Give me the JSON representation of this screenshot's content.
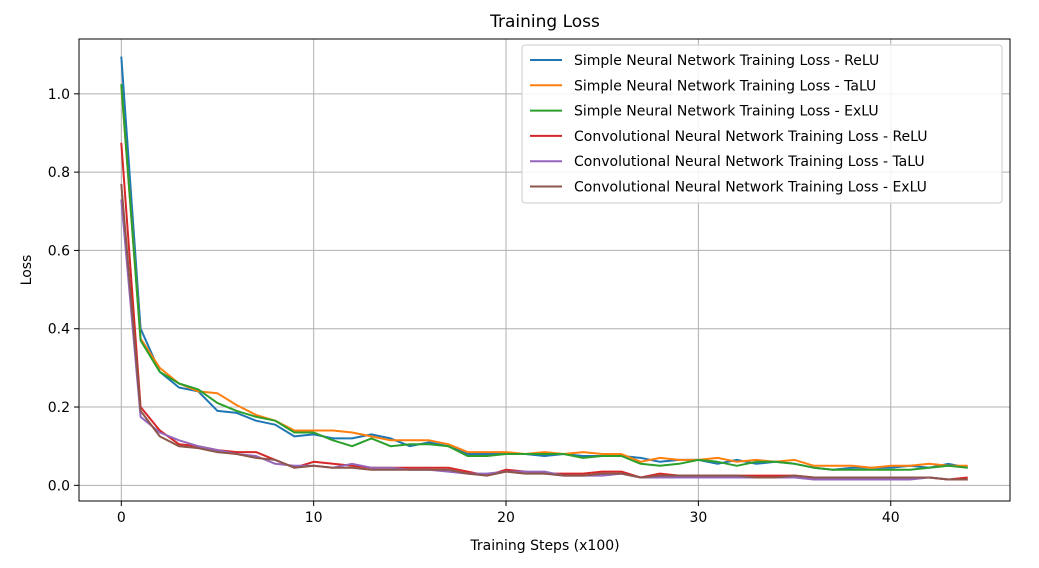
{
  "chart_data": {
    "type": "line",
    "title": "Training Loss",
    "xlabel": "Training Steps (x100)",
    "ylabel": "Loss",
    "xlim": [
      -2.2,
      46.2
    ],
    "ylim": [
      -0.04,
      1.14
    ],
    "xticks": [
      0,
      10,
      20,
      30,
      40
    ],
    "yticks": [
      0.0,
      0.2,
      0.4,
      0.6,
      0.8,
      1.0
    ],
    "xtick_labels": [
      "0",
      "10",
      "20",
      "30",
      "40"
    ],
    "ytick_labels": [
      "0.0",
      "0.2",
      "0.4",
      "0.6",
      "0.8",
      "1.0"
    ],
    "grid": true,
    "legend_position": "top-right",
    "x": [
      0,
      1,
      2,
      3,
      4,
      5,
      6,
      7,
      8,
      9,
      10,
      11,
      12,
      13,
      14,
      15,
      16,
      17,
      18,
      19,
      20,
      21,
      22,
      23,
      24,
      25,
      26,
      27,
      28,
      29,
      30,
      31,
      32,
      33,
      34,
      35,
      36,
      37,
      38,
      39,
      40,
      41,
      42,
      43,
      44
    ],
    "series": [
      {
        "name": "Simple Neural Network Training Loss - ReLU",
        "color": "#1f77b4",
        "values": [
          1.095,
          0.4,
          0.29,
          0.25,
          0.24,
          0.19,
          0.185,
          0.165,
          0.155,
          0.125,
          0.13,
          0.12,
          0.12,
          0.13,
          0.12,
          0.1,
          0.11,
          0.1,
          0.08,
          0.08,
          0.08,
          0.08,
          0.075,
          0.08,
          0.075,
          0.075,
          0.075,
          0.07,
          0.06,
          0.065,
          0.065,
          0.055,
          0.065,
          0.055,
          0.06,
          0.055,
          0.045,
          0.04,
          0.045,
          0.045,
          0.045,
          0.05,
          0.045,
          0.055,
          0.045
        ]
      },
      {
        "name": "Simple Neural Network Training Loss - TaLU",
        "color": "#ff7f0e",
        "values": [
          1.02,
          0.375,
          0.3,
          0.26,
          0.24,
          0.235,
          0.205,
          0.18,
          0.165,
          0.14,
          0.14,
          0.14,
          0.135,
          0.125,
          0.115,
          0.115,
          0.115,
          0.105,
          0.085,
          0.085,
          0.085,
          0.08,
          0.085,
          0.08,
          0.085,
          0.08,
          0.08,
          0.06,
          0.07,
          0.065,
          0.065,
          0.07,
          0.06,
          0.065,
          0.06,
          0.065,
          0.05,
          0.05,
          0.05,
          0.045,
          0.05,
          0.05,
          0.055,
          0.05,
          0.05
        ]
      },
      {
        "name": "Simple Neural Network Training Loss - ExLU",
        "color": "#2ca02c",
        "values": [
          1.025,
          0.37,
          0.29,
          0.26,
          0.245,
          0.21,
          0.19,
          0.175,
          0.165,
          0.135,
          0.135,
          0.115,
          0.1,
          0.12,
          0.1,
          0.105,
          0.105,
          0.1,
          0.075,
          0.075,
          0.08,
          0.08,
          0.08,
          0.08,
          0.07,
          0.075,
          0.075,
          0.055,
          0.05,
          0.055,
          0.065,
          0.06,
          0.05,
          0.06,
          0.06,
          0.055,
          0.045,
          0.04,
          0.04,
          0.04,
          0.04,
          0.04,
          0.045,
          0.05,
          0.045
        ]
      },
      {
        "name": "Convolutional Neural Network Training Loss - ReLU",
        "color": "#d62728",
        "values": [
          0.875,
          0.2,
          0.14,
          0.105,
          0.1,
          0.09,
          0.085,
          0.085,
          0.065,
          0.045,
          0.06,
          0.055,
          0.05,
          0.045,
          0.045,
          0.045,
          0.045,
          0.045,
          0.035,
          0.025,
          0.04,
          0.035,
          0.03,
          0.03,
          0.03,
          0.035,
          0.035,
          0.02,
          0.03,
          0.025,
          0.025,
          0.025,
          0.025,
          0.025,
          0.025,
          0.025,
          0.02,
          0.02,
          0.02,
          0.02,
          0.02,
          0.02,
          0.02,
          0.015,
          0.02
        ]
      },
      {
        "name": "Convolutional Neural Network Training Loss - TaLU",
        "color": "#9467bd",
        "values": [
          0.73,
          0.175,
          0.135,
          0.115,
          0.1,
          0.09,
          0.08,
          0.075,
          0.055,
          0.05,
          0.05,
          0.045,
          0.055,
          0.045,
          0.045,
          0.04,
          0.04,
          0.035,
          0.03,
          0.03,
          0.035,
          0.035,
          0.035,
          0.025,
          0.025,
          0.025,
          0.03,
          0.02,
          0.02,
          0.02,
          0.02,
          0.02,
          0.02,
          0.02,
          0.02,
          0.02,
          0.015,
          0.015,
          0.015,
          0.015,
          0.015,
          0.015,
          0.02,
          0.015,
          0.015
        ]
      },
      {
        "name": "Convolutional Neural Network Training Loss - ExLU",
        "color": "#8c564b",
        "values": [
          0.77,
          0.19,
          0.125,
          0.1,
          0.095,
          0.085,
          0.08,
          0.07,
          0.065,
          0.045,
          0.05,
          0.045,
          0.045,
          0.04,
          0.04,
          0.04,
          0.04,
          0.04,
          0.03,
          0.025,
          0.035,
          0.03,
          0.03,
          0.025,
          0.025,
          0.03,
          0.03,
          0.02,
          0.025,
          0.025,
          0.025,
          0.025,
          0.025,
          0.02,
          0.02,
          0.025,
          0.02,
          0.02,
          0.02,
          0.02,
          0.02,
          0.02,
          0.02,
          0.015,
          0.015
        ]
      }
    ]
  }
}
